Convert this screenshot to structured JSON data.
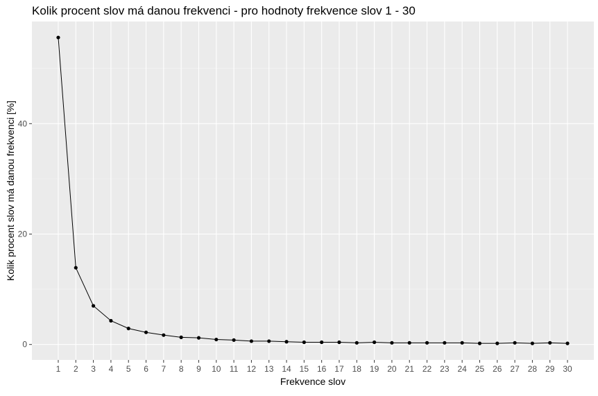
{
  "chart_data": {
    "type": "line",
    "title": "Kolik procent slov má danou frekvenci - pro hodnoty frekvence slov 1 - 30",
    "xlabel": "Frekvence slov",
    "ylabel": "Kolik procent slov má danou frekvenci [%]",
    "x": [
      1,
      2,
      3,
      4,
      5,
      6,
      7,
      8,
      9,
      10,
      11,
      12,
      13,
      14,
      15,
      16,
      17,
      18,
      19,
      20,
      21,
      22,
      23,
      24,
      25,
      26,
      27,
      28,
      29,
      30
    ],
    "series": [
      {
        "values": [
          55.6,
          13.9,
          7.0,
          4.3,
          2.9,
          2.2,
          1.7,
          1.3,
          1.2,
          0.9,
          0.8,
          0.6,
          0.6,
          0.5,
          0.4,
          0.4,
          0.4,
          0.3,
          0.4,
          0.3,
          0.3,
          0.3,
          0.3,
          0.3,
          0.2,
          0.2,
          0.3,
          0.2,
          0.3,
          0.2
        ]
      }
    ],
    "xticks": [
      "1",
      "2",
      "3",
      "4",
      "5",
      "6",
      "7",
      "8",
      "9",
      "10",
      "11",
      "12",
      "13",
      "14",
      "15",
      "16",
      "17",
      "18",
      "19",
      "20",
      "21",
      "22",
      "23",
      "24",
      "25",
      "26",
      "27",
      "28",
      "29",
      "30"
    ],
    "yticks": [
      "0",
      "20",
      "40"
    ],
    "ytick_values": [
      0,
      20,
      40
    ],
    "xlim": [
      -0.5,
      31.5
    ],
    "ylim": [
      -2.8,
      58.5
    ],
    "grid": true,
    "legend": "none",
    "colors": {
      "panel": "#ebebeb",
      "grid": "#ffffff",
      "line": "#000000",
      "tick_text": "#4d4d4d"
    }
  }
}
